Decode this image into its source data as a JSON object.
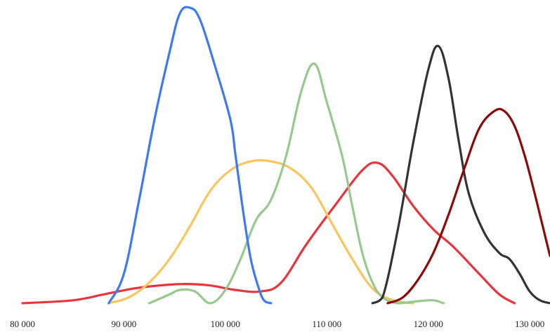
{
  "chart_data": {
    "type": "line",
    "title": "",
    "xlabel": "",
    "ylabel": "",
    "xlim": [
      80000,
      132000
    ],
    "ylim": [
      0,
      1
    ],
    "grid": false,
    "x_ticks": [
      {
        "value": 80000,
        "label": "80 000"
      },
      {
        "value": 90000,
        "label": "90 000"
      },
      {
        "value": 100000,
        "label": "100 000"
      },
      {
        "value": 110000,
        "label": "110 000"
      },
      {
        "value": 120000,
        "label": "120 000"
      },
      {
        "value": 130000,
        "label": "130 000"
      }
    ],
    "series": [
      {
        "color": "#e8353d",
        "points": [
          [
            80000,
            0.0
          ],
          [
            85000,
            0.01
          ],
          [
            88000,
            0.03
          ],
          [
            91000,
            0.05
          ],
          [
            93500,
            0.06
          ],
          [
            96000,
            0.065
          ],
          [
            98500,
            0.06
          ],
          [
            101000,
            0.045
          ],
          [
            103500,
            0.04
          ],
          [
            105500,
            0.07
          ],
          [
            108000,
            0.2
          ],
          [
            111000,
            0.34
          ],
          [
            113500,
            0.45
          ],
          [
            115000,
            0.475
          ],
          [
            116500,
            0.43
          ],
          [
            118500,
            0.33
          ],
          [
            120500,
            0.25
          ],
          [
            122500,
            0.19
          ],
          [
            125000,
            0.1
          ],
          [
            127000,
            0.03
          ],
          [
            128500,
            0.0
          ]
        ]
      },
      {
        "color": "#f9c55c",
        "points": [
          [
            88500,
            0.0
          ],
          [
            90500,
            0.02
          ],
          [
            92500,
            0.07
          ],
          [
            94500,
            0.15
          ],
          [
            96500,
            0.26
          ],
          [
            98500,
            0.38
          ],
          [
            100500,
            0.45
          ],
          [
            102500,
            0.48
          ],
          [
            104500,
            0.48
          ],
          [
            106500,
            0.455
          ],
          [
            108500,
            0.39
          ],
          [
            110500,
            0.27
          ],
          [
            112500,
            0.15
          ],
          [
            114500,
            0.05
          ],
          [
            116500,
            0.01
          ],
          [
            118500,
            0.0
          ]
        ]
      },
      {
        "color": "#97c98e",
        "points": [
          [
            92500,
            0.0
          ],
          [
            94500,
            0.03
          ],
          [
            95500,
            0.045
          ],
          [
            97000,
            0.04
          ],
          [
            98500,
            0.0
          ],
          [
            100000,
            0.045
          ],
          [
            101500,
            0.15
          ],
          [
            103000,
            0.28
          ],
          [
            104500,
            0.35
          ],
          [
            106000,
            0.5
          ],
          [
            107500,
            0.72
          ],
          [
            108800,
            0.81
          ],
          [
            110000,
            0.68
          ],
          [
            111500,
            0.5
          ],
          [
            112500,
            0.33
          ],
          [
            113500,
            0.17
          ],
          [
            114500,
            0.07
          ],
          [
            115500,
            0.02
          ],
          [
            117000,
            0.0
          ],
          [
            119000,
            0.007
          ],
          [
            120500,
            0.01
          ],
          [
            121500,
            0.0
          ]
        ]
      },
      {
        "color": "#3d7aef",
        "points": [
          [
            88500,
            0.0
          ],
          [
            90000,
            0.1
          ],
          [
            91500,
            0.35
          ],
          [
            93000,
            0.62
          ],
          [
            94500,
            0.85
          ],
          [
            95500,
            0.98
          ],
          [
            96500,
            1.0
          ],
          [
            97500,
            0.96
          ],
          [
            99000,
            0.8
          ],
          [
            100500,
            0.62
          ],
          [
            101000,
            0.5
          ],
          [
            101800,
            0.3
          ],
          [
            102500,
            0.15
          ],
          [
            103200,
            0.06
          ],
          [
            103800,
            0.01
          ],
          [
            104500,
            0.0
          ]
        ]
      },
      {
        "color": "#333333",
        "points": [
          [
            114500,
            0.0
          ],
          [
            115500,
            0.02
          ],
          [
            117000,
            0.25
          ],
          [
            118500,
            0.54
          ],
          [
            120000,
            0.79
          ],
          [
            121000,
            0.87
          ],
          [
            122000,
            0.76
          ],
          [
            123000,
            0.55
          ],
          [
            124000,
            0.37
          ],
          [
            125500,
            0.24
          ],
          [
            127000,
            0.17
          ],
          [
            128000,
            0.15
          ],
          [
            129000,
            0.1
          ],
          [
            130000,
            0.04
          ],
          [
            131000,
            0.01
          ],
          [
            132000,
            0.0
          ]
        ]
      },
      {
        "color": "#8b0a0a",
        "points": [
          [
            116000,
            0.0
          ],
          [
            117500,
            0.02
          ],
          [
            119000,
            0.08
          ],
          [
            120500,
            0.17
          ],
          [
            122000,
            0.3
          ],
          [
            123500,
            0.45
          ],
          [
            125000,
            0.59
          ],
          [
            126500,
            0.65
          ],
          [
            127500,
            0.65
          ],
          [
            128500,
            0.6
          ],
          [
            129500,
            0.5
          ],
          [
            130500,
            0.37
          ],
          [
            131500,
            0.23
          ],
          [
            132000,
            0.16
          ]
        ]
      }
    ]
  }
}
